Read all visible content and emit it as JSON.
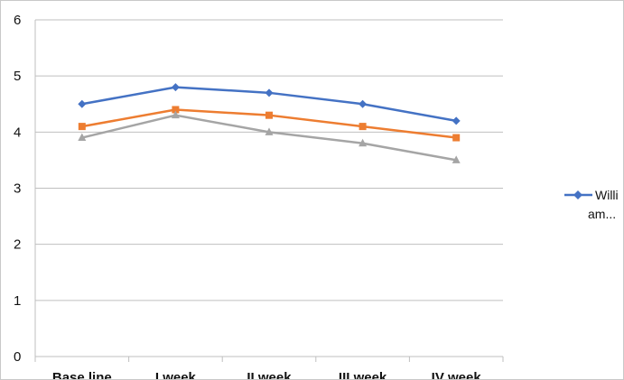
{
  "chart_data": {
    "type": "line",
    "categories": [
      "Base line",
      "I week",
      "II week",
      "III week",
      "IV week"
    ],
    "ylim": [
      0,
      6
    ],
    "yticks": [
      "0",
      "1",
      "2",
      "3",
      "4",
      "5",
      "6"
    ],
    "grid": "horizontal",
    "legend_position": "right",
    "series": [
      {
        "name": "Willi am...",
        "color": "#4472c4",
        "marker": "diamond",
        "values": [
          4.5,
          4.8,
          4.7,
          4.5,
          4.2
        ]
      },
      {
        "color": "#ed7d31",
        "marker": "square",
        "values": [
          4.1,
          4.4,
          4.3,
          4.1,
          3.9
        ]
      },
      {
        "color": "#a5a5a5",
        "marker": "triangle",
        "values": [
          3.9,
          4.3,
          4.0,
          3.8,
          3.5
        ]
      }
    ]
  },
  "legend": {
    "line1": "Willi",
    "line2": "am..."
  }
}
